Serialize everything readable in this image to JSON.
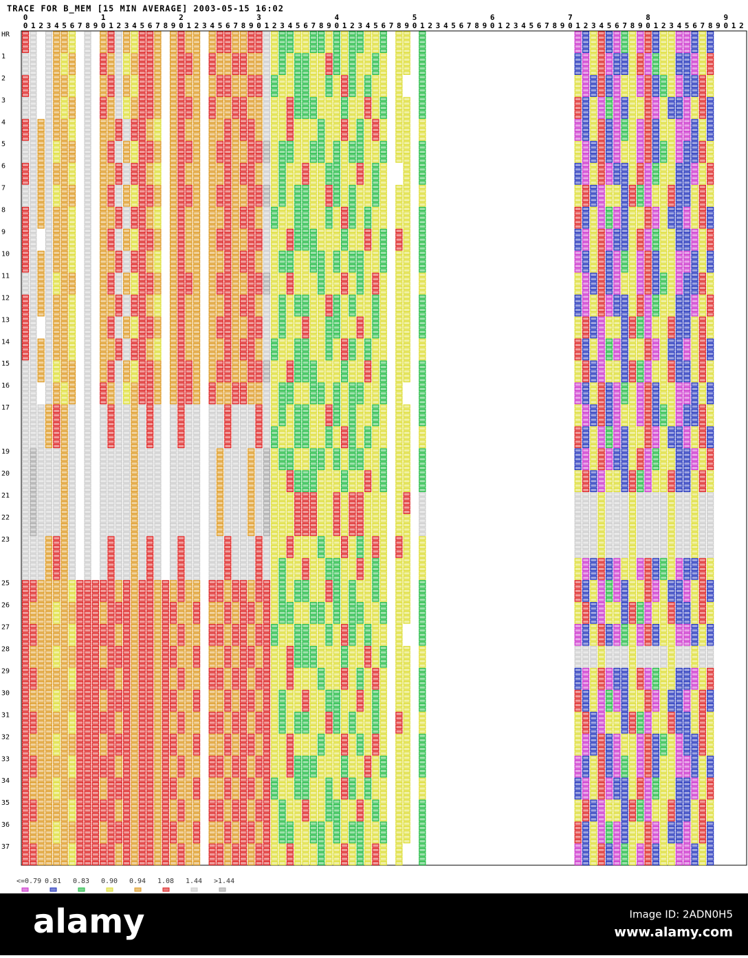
{
  "chart_data": {
    "type": "heatmap",
    "title": "TRACE FOR B_MEM [15 MIN AVERAGE] 2003-05-15 16:02",
    "x_tens": [
      "0",
      "1",
      "2",
      "3",
      "4",
      "5",
      "6",
      "7",
      "8",
      "9"
    ],
    "x_units": "012345678901234567890123456789012345678901234567890123456789012345678901234567890123456789012",
    "y_labels": [
      "HR",
      "1",
      "2",
      "3",
      "4",
      "5",
      "6",
      "7",
      "8",
      "9",
      "10",
      "11",
      "12",
      "13",
      "14",
      "15",
      "16",
      "17",
      null,
      "19",
      "20",
      "21",
      "22",
      "23",
      null,
      "25",
      "26",
      "27",
      "28",
      "29",
      "30",
      "31",
      "32",
      "33",
      "34",
      "35",
      "36",
      "37"
    ],
    "legend": [
      {
        "label": "<=0.79",
        "color": "#cc33cc"
      },
      {
        "label": "0.81",
        "color": "#2233bb"
      },
      {
        "label": "0.83",
        "color": "#22bb44"
      },
      {
        "label": "0.90",
        "color": "#dddd33"
      },
      {
        "label": "0.94",
        "color": "#dd9922"
      },
      {
        "label": "1.08",
        "color": "#dd2222"
      },
      {
        "label": "1.44",
        "color": "#cccccc"
      },
      {
        "label": ">1.44",
        "color": "#a8a8a8"
      }
    ],
    "rows": [
      "56.6443.6.45643554.4544.45544556322332232322332.33.2...................013510230513300131....",
      "66.6434.6.54634554.4554.54455446323223352323323.33.2...................103501135023311035....",
      "56.6443.6.45643554.4544.45544556233223323523233.3..2...................301510330512301153....",
      "66.6434.6.54634554.4554.54455446335222333233532.33.2...................513020133503110351....",
      "5646443.6.44565543.4544.44545546335333233532353.33.3...................013510230513300131....",
      "6646344.6.45643554.4554.45544557322332232322332.33.2...................301510330512301153....",
      "5646443.6.44565543.4544.44545546323353322335323..3.2...................103501135023311035....",
      "6646344.6.45643554.4554.45544557323223352323323.33.3...................351033152033511353....",
      "5646443.6.44565543.4544.44545546233223323523233.33.2...................513020133503110351....",
      "56.6443.6.45643554.4544.45544556335222333233532.53.2...................103501135023311035....",
      "5646443.6.44565543.4544.44545546322332232322332.33.2...................013510230513300131....",
      "6646344.6.45643554.4554.45544557335333233532353.33.3...................301510330512301153....",
      "5646443.6.44565543.4544.44545546323223352323323.33.2...................103501135023311035....",
      "56.6443.6.45643554.4544.45544556323353322335323.33.2...................351033152033511353....",
      "5646443.6.44565543.4544.44545546233223323523233.33.3...................513020133503110351....",
      "6646344.6.45643554.4554.45544557335222333233532.33.2...................351033152033511353....",
      "66.6434.6.54634554.4554.54455446322332232322332.3..2...................013510230513300131....",
      "6664546.6.65664656.6566.66566656323223352323323.33.2...................301510330512301153....",
      "6664546.6.65664656.6566.66566656233223323523233.33.3...................513020133503110351....",
      "6766646.6.66664666.6666.64666467322332232322332.33.2...................103501135023311035....",
      "6766646.6.66664666.6666.64666467335222333233532.33.2...................351033152033511353....",
      "6766646.6.66664666.6666.64666467333555335355333.35.6...................666366636666366366....",
      "6766646.6.66664666.6666.64666467333555335355333.33.6...................666366636666366366....",
      "6664546.6.65664656.6566.66566656335333233532353.53.3...................666366636666366366....",
      "6664546.6.65664656.6566.66566656323353322335323.33.3...................301510330512301153....",
      "55444435555545455454544.55455455323223352323323.33.2...................513020133503110351....",
      "54443445554555455455445.44545545322332232322332.33.2...................351033152033511353....",
      "55444435555545455454544.55455455233223323523233.3..2...................013510230513300131....",
      "54443445554555455455445.44545545335222333233532.33.3...................666366636666366366....",
      "55444435555545455454544.55455455335333233532353.33.2...................103501135023311035....",
      "54443445554555455455445.44545545323353322335323.33.2...................513020133503110351....",
      "55444435555545455454544.55455455323223352323323.53.3...................351033152033511353....",
      "54443445554555455455445.44545545335333233532353.33.2...................301510330512301153....",
      "55444435555545455454544.55455455335222333233532.33.2...................013510230513300131....",
      "54443445554555455455445.44545545233223323523233.33.3...................103501135023311035....",
      "55444435555545455454544.55455455323353322335323.33.2...................351033152033511353....",
      "54443445554555455455445.44545545322332232322332.33.2...................513020133503110351....",
      "55444435555545455454544.55455455335333233532353.3..2...................013510230513300131...."
    ]
  },
  "footer": {
    "brand": "alamy",
    "image_id": "Image ID: 2ADN0H5",
    "site": "www.alamy.com"
  }
}
